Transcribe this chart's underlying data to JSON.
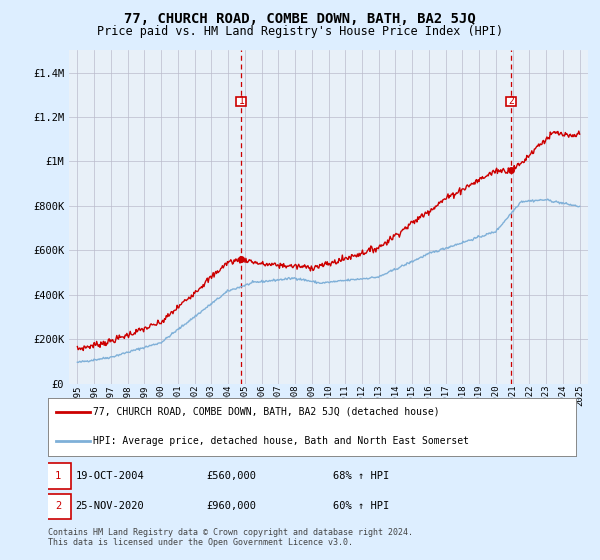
{
  "title": "77, CHURCH ROAD, COMBE DOWN, BATH, BA2 5JQ",
  "subtitle": "Price paid vs. HM Land Registry's House Price Index (HPI)",
  "title_fontsize": 10,
  "subtitle_fontsize": 8.5,
  "y_ticks": [
    0,
    200000,
    400000,
    600000,
    800000,
    1000000,
    1200000,
    1400000
  ],
  "y_tick_labels": [
    "£0",
    "£200K",
    "£400K",
    "£600K",
    "£800K",
    "£1M",
    "£1.2M",
    "£1.4M"
  ],
  "x_start_year": 1995,
  "x_end_year": 2025,
  "sale1_year": 2004.8,
  "sale1_price": 560000,
  "sale1_label": "19-OCT-2004",
  "sale1_amount": "£560,000",
  "sale1_hpi_pct": "68% ↑ HPI",
  "sale2_year": 2020.9,
  "sale2_price": 960000,
  "sale2_label": "25-NOV-2020",
  "sale2_amount": "£960,000",
  "sale2_hpi_pct": "60% ↑ HPI",
  "red_color": "#cc0000",
  "blue_color": "#7fb0d8",
  "background_color": "#ddeeff",
  "plot_bg_color": "#e8f0f8",
  "grid_color": "#bbbbcc",
  "legend1": "77, CHURCH ROAD, COMBE DOWN, BATH, BA2 5JQ (detached house)",
  "legend2": "HPI: Average price, detached house, Bath and North East Somerset",
  "footer": "Contains HM Land Registry data © Crown copyright and database right 2024.\nThis data is licensed under the Open Government Licence v3.0.",
  "ylim": [
    0,
    1500000
  ],
  "xlim_start": 1994.5,
  "xlim_end": 2025.5
}
